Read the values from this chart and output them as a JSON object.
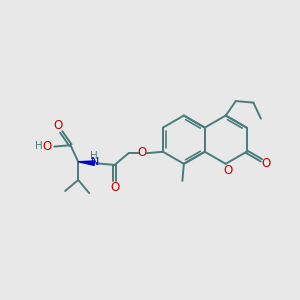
{
  "background_color": "#e8e8e8",
  "bond_color": "#4a7c7c",
  "oxygen_color": "#cc0000",
  "nitrogen_color": "#0000cc",
  "figsize": [
    3.0,
    3.0
  ],
  "dpi": 100,
  "xlim": [
    0,
    10
  ],
  "ylim": [
    0,
    10
  ]
}
